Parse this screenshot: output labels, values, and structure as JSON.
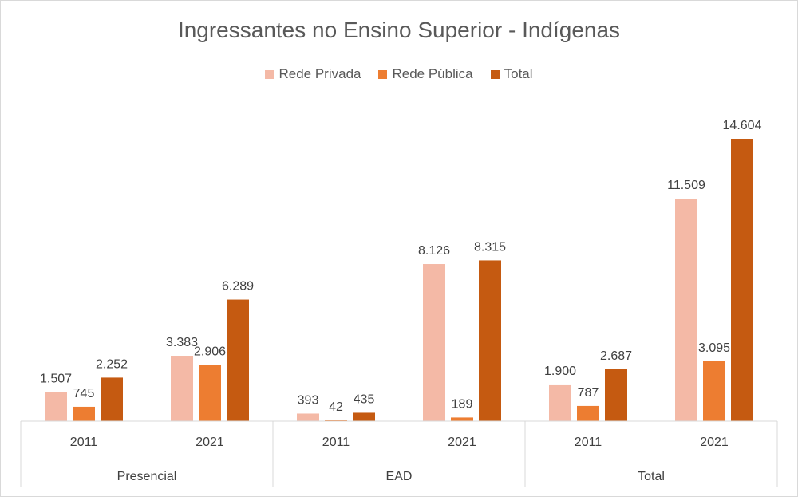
{
  "chart_data": {
    "type": "bar",
    "title": "Ingressantes no Ensino Superior - Indígenas",
    "groups": [
      "Presencial",
      "EAD",
      "Total"
    ],
    "categories": [
      "2011",
      "2021",
      "2011",
      "2021",
      "2011",
      "2021"
    ],
    "series": [
      {
        "name": "Rede Privada",
        "color": "#F4B9A6",
        "values": [
          1507,
          3383,
          393,
          8126,
          1900,
          11509
        ],
        "labels": [
          "1.507",
          "3.383",
          "393",
          "8.126",
          "1.900",
          "11.509"
        ]
      },
      {
        "name": "Rede Pública",
        "color": "#ED7D31",
        "values": [
          745,
          2906,
          42,
          189,
          787,
          3095
        ],
        "labels": [
          "745",
          "2.906",
          "42",
          "189",
          "787",
          "3.095"
        ]
      },
      {
        "name": "Total",
        "color": "#C55A11",
        "values": [
          2252,
          6289,
          435,
          8315,
          2687,
          14604
        ],
        "labels": [
          "2.252",
          "6.289",
          "435",
          "8.315",
          "2.687",
          "14.604"
        ]
      }
    ],
    "ylim": [
      0,
      16000
    ],
    "grid": false,
    "legend": "top"
  }
}
